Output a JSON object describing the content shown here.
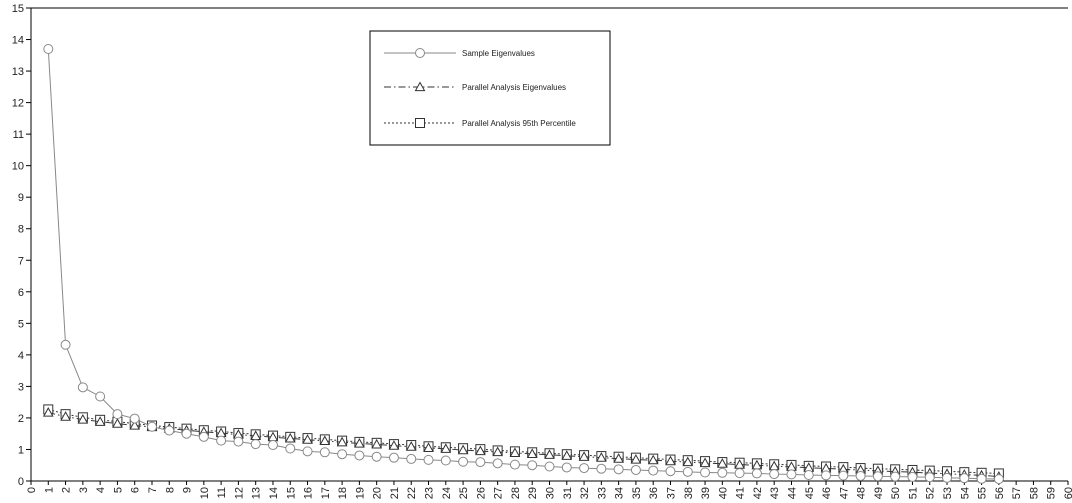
{
  "chart_data": {
    "type": "line",
    "x": [
      1,
      2,
      3,
      4,
      5,
      6,
      7,
      8,
      9,
      10,
      11,
      12,
      13,
      14,
      15,
      16,
      17,
      18,
      19,
      20,
      21,
      22,
      23,
      24,
      25,
      26,
      27,
      28,
      29,
      30,
      31,
      32,
      33,
      34,
      35,
      36,
      37,
      38,
      39,
      40,
      41,
      42,
      43,
      44,
      45,
      46,
      47,
      48,
      49,
      50,
      51,
      52,
      53,
      54,
      55,
      56
    ],
    "xlim": [
      0,
      60
    ],
    "ylim": [
      0,
      15
    ],
    "y_ticks": [
      "0",
      "1",
      "2",
      "3",
      "4",
      "5",
      "6",
      "7",
      "8",
      "9",
      "10",
      "11",
      "12",
      "13",
      "14",
      "15"
    ],
    "x_ticks": [
      "0",
      "1",
      "2",
      "3",
      "4",
      "5",
      "6",
      "7",
      "8",
      "9",
      "10",
      "11",
      "12",
      "13",
      "14",
      "15",
      "16",
      "17",
      "18",
      "19",
      "20",
      "21",
      "22",
      "23",
      "24",
      "25",
      "26",
      "27",
      "28",
      "29",
      "30",
      "31",
      "32",
      "33",
      "34",
      "35",
      "36",
      "37",
      "38",
      "39",
      "40",
      "41",
      "42",
      "43",
      "44",
      "45",
      "46",
      "47",
      "48",
      "49",
      "50",
      "51",
      "52",
      "53",
      "54",
      "55",
      "56",
      "57",
      "58",
      "59",
      "60"
    ],
    "grid": false,
    "legend_position": "top-center",
    "series": [
      {
        "name": "Sample Eigenvalues",
        "line_style": "solid",
        "marker": "circle",
        "color": "#888888",
        "values": [
          13.7,
          4.32,
          2.97,
          2.68,
          2.12,
          1.98,
          1.72,
          1.6,
          1.5,
          1.4,
          1.28,
          1.25,
          1.17,
          1.14,
          1.03,
          0.94,
          0.91,
          0.85,
          0.81,
          0.77,
          0.74,
          0.7,
          0.67,
          0.65,
          0.61,
          0.6,
          0.56,
          0.52,
          0.5,
          0.46,
          0.43,
          0.41,
          0.39,
          0.37,
          0.35,
          0.33,
          0.31,
          0.29,
          0.27,
          0.26,
          0.25,
          0.24,
          0.22,
          0.21,
          0.19,
          0.18,
          0.17,
          0.16,
          0.15,
          0.14,
          0.13,
          0.12,
          0.1,
          0.09,
          0.07,
          0.06
        ]
      },
      {
        "name": "Parallel Analysis Eigenvalues",
        "line_style": "dashdot",
        "marker": "triangle",
        "color": "#333333",
        "values": [
          2.17,
          2.04,
          1.95,
          1.88,
          1.82,
          1.76,
          1.71,
          1.66,
          1.61,
          1.56,
          1.52,
          1.47,
          1.43,
          1.39,
          1.35,
          1.31,
          1.27,
          1.23,
          1.19,
          1.16,
          1.12,
          1.09,
          1.05,
          1.02,
          0.98,
          0.95,
          0.92,
          0.89,
          0.86,
          0.83,
          0.8,
          0.77,
          0.74,
          0.71,
          0.68,
          0.66,
          0.63,
          0.6,
          0.57,
          0.55,
          0.52,
          0.5,
          0.47,
          0.45,
          0.42,
          0.4,
          0.37,
          0.35,
          0.32,
          0.3,
          0.28,
          0.25,
          0.23,
          0.2,
          0.18,
          0.14
        ]
      },
      {
        "name": "Parallel Analysis 95th Percentile",
        "line_style": "dotted",
        "marker": "square",
        "color": "#333333",
        "values": [
          2.27,
          2.12,
          2.02,
          1.94,
          1.88,
          1.82,
          1.76,
          1.71,
          1.66,
          1.61,
          1.57,
          1.52,
          1.48,
          1.44,
          1.4,
          1.36,
          1.32,
          1.28,
          1.24,
          1.21,
          1.17,
          1.14,
          1.1,
          1.07,
          1.04,
          1.01,
          0.97,
          0.94,
          0.91,
          0.88,
          0.85,
          0.82,
          0.79,
          0.77,
          0.74,
          0.71,
          0.68,
          0.66,
          0.63,
          0.6,
          0.58,
          0.56,
          0.53,
          0.51,
          0.48,
          0.46,
          0.44,
          0.41,
          0.39,
          0.37,
          0.35,
          0.33,
          0.31,
          0.28,
          0.26,
          0.24
        ]
      }
    ]
  }
}
